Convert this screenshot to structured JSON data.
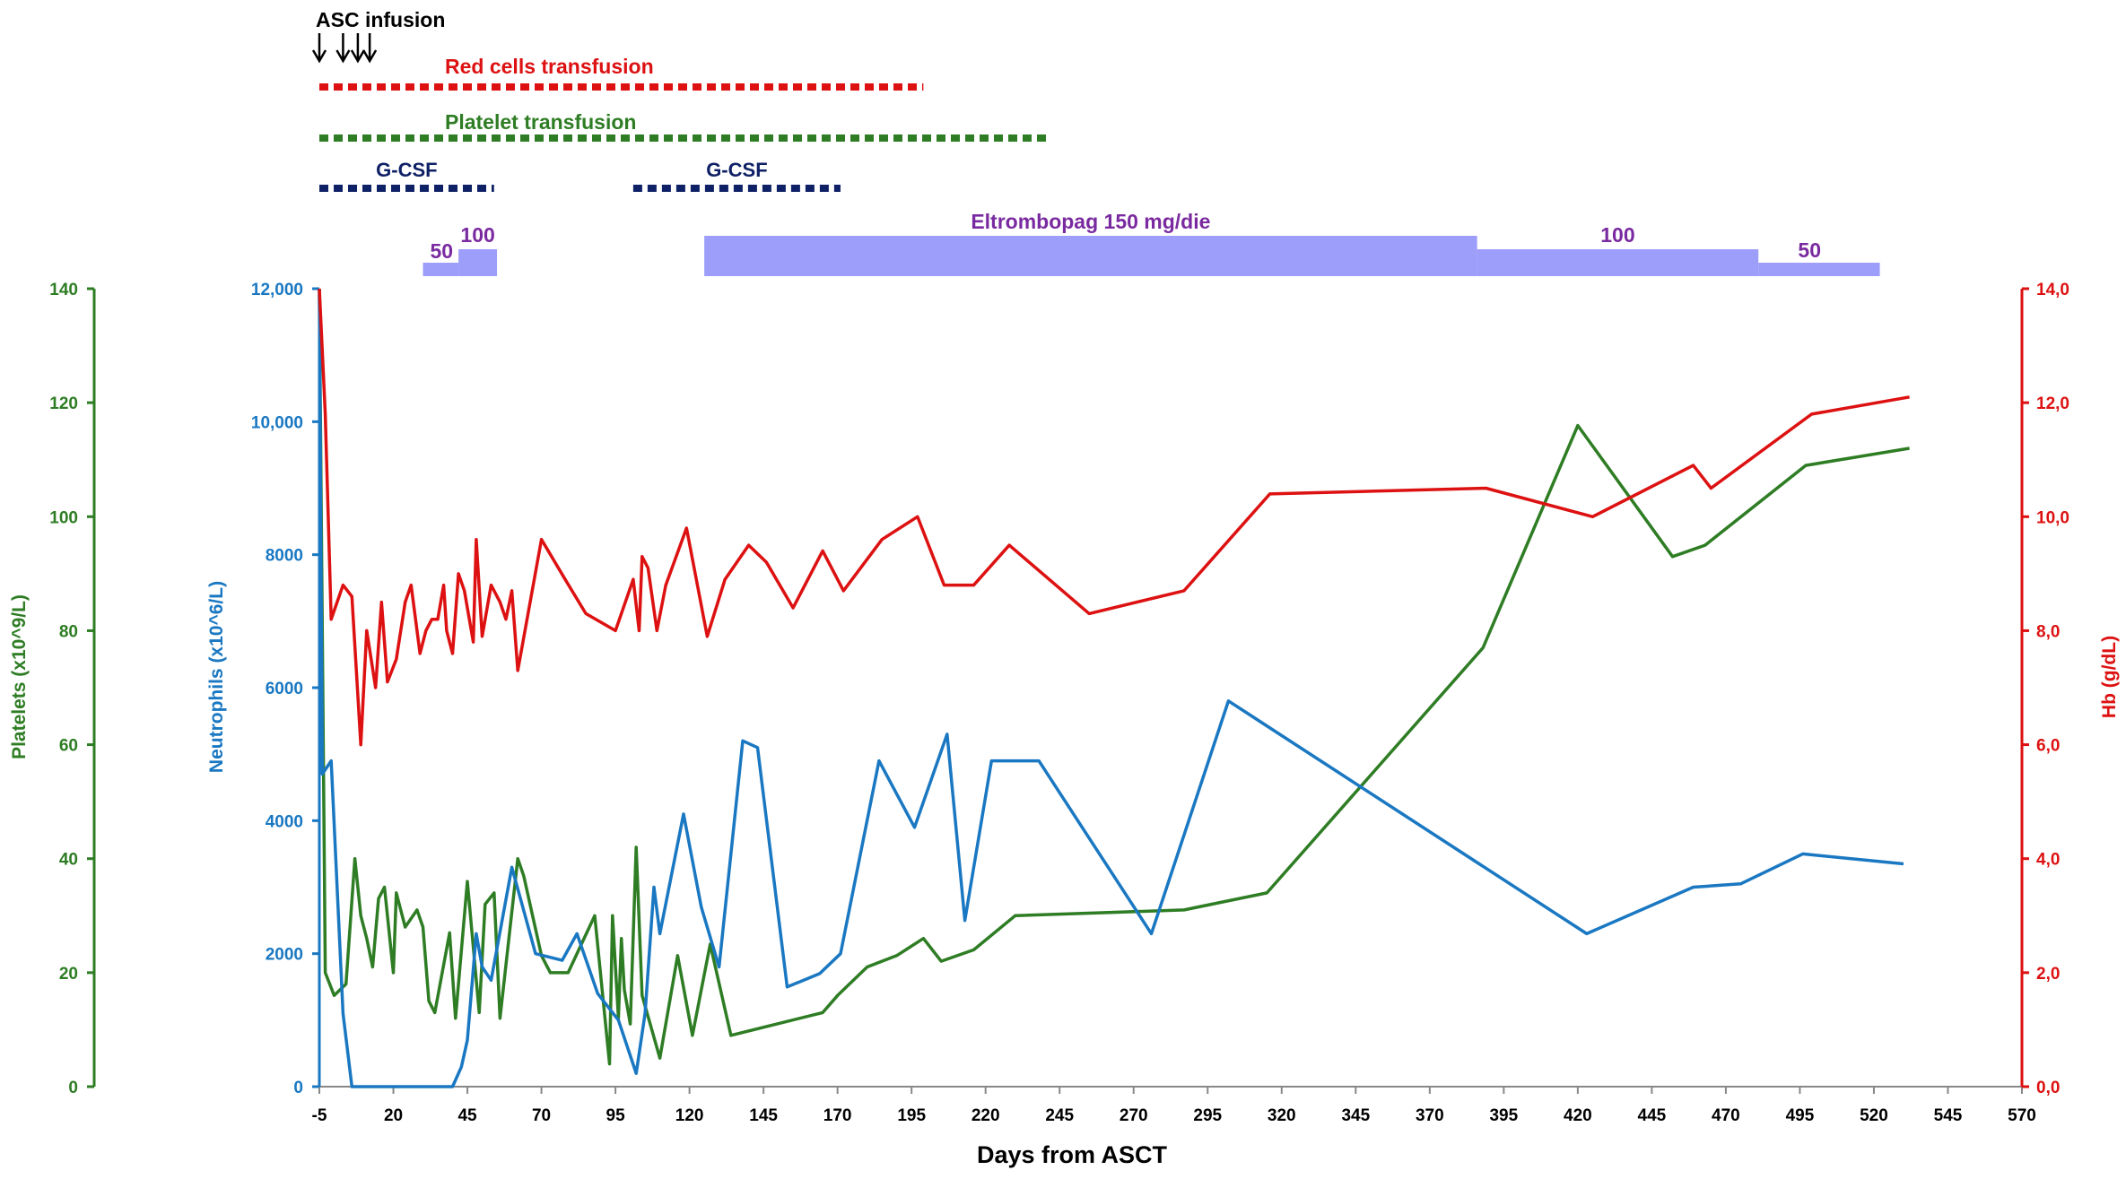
{
  "chart_data": {
    "type": "line",
    "xlabel": "Days from ASCT",
    "x_ticks": [
      "-5",
      "20",
      "45",
      "70",
      "95",
      "120",
      "145",
      "170",
      "195",
      "220",
      "245",
      "270",
      "295",
      "320",
      "345",
      "370",
      "395",
      "420",
      "445",
      "470",
      "495",
      "520",
      "545",
      "570"
    ],
    "xlim": [
      -5,
      570
    ],
    "axes": {
      "platelets": {
        "label": "Platelets (x10^9/L)",
        "ylim": [
          0,
          140
        ],
        "ticks": [
          "0",
          "20",
          "40",
          "60",
          "80",
          "100",
          "120",
          "140"
        ],
        "color": "#2e7d24"
      },
      "neutrophils": {
        "label": "Neutrophils (x10^6/L)",
        "ylim": [
          0,
          12000
        ],
        "ticks": [
          "0",
          "2000",
          "4000",
          "6000",
          "8000",
          "10,000",
          "12,000"
        ],
        "color": "#1a78c2"
      },
      "hb": {
        "label": "Hb (g/dL)",
        "ylim": [
          0,
          14
        ],
        "ticks": [
          "0,0",
          "2,0",
          "4,0",
          "6,0",
          "8,0",
          "10,0",
          "12,0",
          "14,0"
        ],
        "color": "#dd1111"
      }
    },
    "series": [
      {
        "name": "Platelets",
        "axis": "platelets",
        "color": "#2e7d24",
        "points": [
          [
            -5,
            140
          ],
          [
            -3,
            20
          ],
          [
            0,
            16
          ],
          [
            4,
            18
          ],
          [
            7,
            40
          ],
          [
            9,
            30
          ],
          [
            11,
            26
          ],
          [
            13,
            21
          ],
          [
            15,
            33
          ],
          [
            17,
            35
          ],
          [
            20,
            20
          ],
          [
            21,
            34
          ],
          [
            24,
            28
          ],
          [
            28,
            31
          ],
          [
            30,
            28
          ],
          [
            32,
            15
          ],
          [
            34,
            13
          ],
          [
            39,
            27
          ],
          [
            41,
            12
          ],
          [
            45,
            36
          ],
          [
            49,
            13
          ],
          [
            51,
            32
          ],
          [
            54,
            34
          ],
          [
            56,
            12
          ],
          [
            62,
            40
          ],
          [
            64,
            37
          ],
          [
            70,
            23
          ],
          [
            73,
            20
          ],
          [
            79,
            20
          ],
          [
            88,
            30
          ],
          [
            93,
            4
          ],
          [
            94,
            30
          ],
          [
            96,
            12
          ],
          [
            97,
            26
          ],
          [
            98,
            17
          ],
          [
            100,
            11
          ],
          [
            102,
            42
          ],
          [
            104,
            16
          ],
          [
            110,
            5
          ],
          [
            116,
            23
          ],
          [
            121,
            9
          ],
          [
            127,
            25
          ],
          [
            134,
            9
          ],
          [
            165,
            13
          ],
          [
            170,
            16
          ],
          [
            180,
            21
          ],
          [
            190,
            23
          ],
          [
            199,
            26
          ],
          [
            205,
            22
          ],
          [
            216,
            24
          ],
          [
            230,
            30
          ],
          [
            287,
            31
          ],
          [
            315,
            34
          ],
          [
            388,
            77
          ],
          [
            420,
            116
          ],
          [
            452,
            93
          ],
          [
            463,
            95
          ],
          [
            497,
            109
          ],
          [
            532,
            112
          ]
        ]
      },
      {
        "name": "Neutrophils",
        "axis": "neutrophils",
        "color": "#1a78c2",
        "points": [
          [
            -5,
            12000
          ],
          [
            -4,
            4700
          ],
          [
            -1,
            4900
          ],
          [
            3,
            1100
          ],
          [
            6,
            0
          ],
          [
            40,
            0
          ],
          [
            43,
            300
          ],
          [
            45,
            700
          ],
          [
            48,
            2300
          ],
          [
            50,
            1800
          ],
          [
            53,
            1600
          ],
          [
            60,
            3300
          ],
          [
            68,
            2000
          ],
          [
            77,
            1900
          ],
          [
            82,
            2300
          ],
          [
            89,
            1400
          ],
          [
            96,
            1000
          ],
          [
            102,
            200
          ],
          [
            105,
            1100
          ],
          [
            108,
            3000
          ],
          [
            110,
            2300
          ],
          [
            118,
            4100
          ],
          [
            124,
            2700
          ],
          [
            130,
            1800
          ],
          [
            138,
            5200
          ],
          [
            143,
            5100
          ],
          [
            153,
            1500
          ],
          [
            164,
            1700
          ],
          [
            171,
            2000
          ],
          [
            184,
            4900
          ],
          [
            196,
            3900
          ],
          [
            207,
            5300
          ],
          [
            213,
            2500
          ],
          [
            222,
            4900
          ],
          [
            238,
            4900
          ],
          [
            276,
            2300
          ],
          [
            302,
            5800
          ],
          [
            423,
            2300
          ],
          [
            459,
            3000
          ],
          [
            475,
            3050
          ],
          [
            496,
            3500
          ],
          [
            530,
            3350
          ]
        ]
      },
      {
        "name": "Hb",
        "axis": "hb",
        "color": "#dd1111",
        "points": [
          [
            -5,
            14
          ],
          [
            -3,
            11.8
          ],
          [
            -1,
            8.2
          ],
          [
            3,
            8.8
          ],
          [
            6,
            8.6
          ],
          [
            9,
            6
          ],
          [
            11,
            8
          ],
          [
            14,
            7
          ],
          [
            16,
            8.5
          ],
          [
            18,
            7.1
          ],
          [
            21,
            7.5
          ],
          [
            24,
            8.5
          ],
          [
            26,
            8.8
          ],
          [
            29,
            7.6
          ],
          [
            31,
            8
          ],
          [
            33,
            8.2
          ],
          [
            35,
            8.2
          ],
          [
            37,
            8.8
          ],
          [
            38,
            8
          ],
          [
            40,
            7.6
          ],
          [
            42,
            9
          ],
          [
            44,
            8.7
          ],
          [
            47,
            7.8
          ],
          [
            48,
            9.6
          ],
          [
            50,
            7.9
          ],
          [
            53,
            8.8
          ],
          [
            56,
            8.5
          ],
          [
            58,
            8.2
          ],
          [
            60,
            8.7
          ],
          [
            62,
            7.3
          ],
          [
            70,
            9.6
          ],
          [
            78,
            8.9
          ],
          [
            85,
            8.3
          ],
          [
            95,
            8
          ],
          [
            101,
            8.9
          ],
          [
            103,
            8
          ],
          [
            104,
            9.3
          ],
          [
            106,
            9.1
          ],
          [
            109,
            8
          ],
          [
            112,
            8.8
          ],
          [
            119,
            9.8
          ],
          [
            126,
            7.9
          ],
          [
            132,
            8.9
          ],
          [
            140,
            9.5
          ],
          [
            146,
            9.2
          ],
          [
            155,
            8.4
          ],
          [
            165,
            9.4
          ],
          [
            172,
            8.7
          ],
          [
            185,
            9.6
          ],
          [
            197,
            10
          ],
          [
            206,
            8.8
          ],
          [
            216,
            8.8
          ],
          [
            228,
            9.5
          ],
          [
            255,
            8.3
          ],
          [
            287,
            8.7
          ],
          [
            316,
            10.4
          ],
          [
            389,
            10.5
          ],
          [
            425,
            10
          ],
          [
            459,
            10.9
          ],
          [
            465,
            10.5
          ],
          [
            499,
            11.8
          ],
          [
            532,
            12.1
          ]
        ]
      }
    ],
    "annotations": {
      "asc_infusion": {
        "label": "ASC infusion",
        "days": [
          -5,
          3,
          8,
          12
        ]
      },
      "red_cells": {
        "label": "Red cells transfusion",
        "start": -5,
        "end": 199,
        "color": "#dd1111"
      },
      "platelet_tx": {
        "label": "Platelet transfusion",
        "start": -5,
        "end": 241,
        "color": "#2e7d24"
      },
      "gcsf": [
        {
          "label": "G-CSF",
          "start": -5,
          "end": 54
        },
        {
          "label": "G-CSF",
          "start": 101,
          "end": 171
        }
      ],
      "gcsf_color": "#0f2166",
      "eltrombopag": {
        "color": "#9d9dfa",
        "label_color": "#7a2aa0",
        "segments": [
          {
            "start": 30,
            "end": 42,
            "level": 1,
            "label": "50"
          },
          {
            "start": 42,
            "end": 55,
            "level": 2,
            "label": "100"
          },
          {
            "start": 125,
            "end": 386,
            "level": 3,
            "label": "Eltrombopag 150 mg/die"
          },
          {
            "start": 386,
            "end": 481,
            "level": 2,
            "label": "100"
          },
          {
            "start": 481,
            "end": 522,
            "level": 1,
            "label": "50"
          }
        ]
      }
    }
  }
}
